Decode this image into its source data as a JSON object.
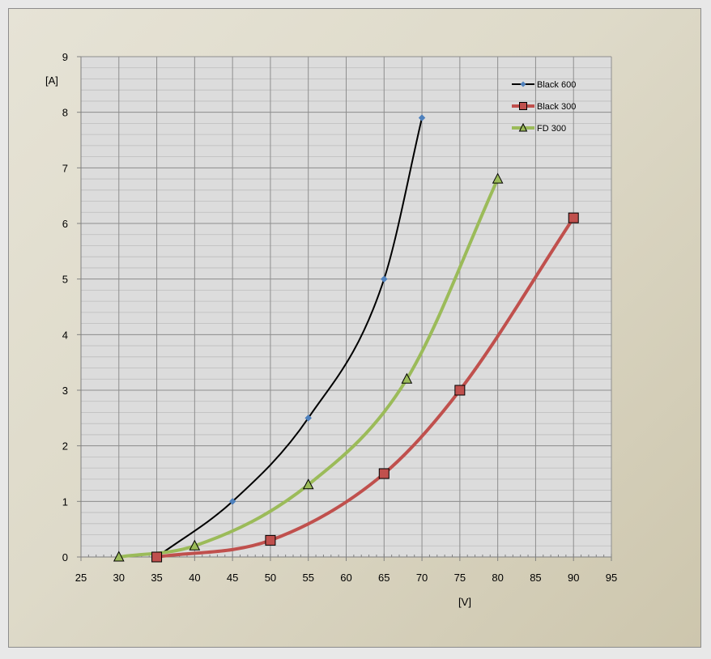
{
  "chart_data": {
    "type": "scatter",
    "title": "",
    "xlabel": "[V]",
    "ylabel": "[A]",
    "xlim": [
      25,
      95
    ],
    "ylim": [
      0,
      9
    ],
    "xticks": [
      25,
      30,
      35,
      40,
      45,
      50,
      55,
      60,
      65,
      70,
      75,
      80,
      85,
      90,
      95
    ],
    "yticks": [
      0,
      1,
      2,
      3,
      4,
      5,
      6,
      7,
      8,
      9
    ],
    "x_minor_step": 1,
    "y_minor_step": 0.2,
    "grid": true,
    "smoothed_lines": true,
    "legend_position": "top-right",
    "series": [
      {
        "name": "Black 600",
        "color": "#000000",
        "marker": "diamond",
        "marker_color": "#4f81bd",
        "points": [
          [
            35,
            0
          ],
          [
            45,
            1
          ],
          [
            55,
            2.5
          ],
          [
            65,
            5
          ],
          [
            70,
            7.9
          ]
        ]
      },
      {
        "name": "Black 300",
        "color": "#c0504d",
        "marker": "square",
        "marker_color": "#c0504d",
        "points": [
          [
            35,
            0
          ],
          [
            50,
            0.3
          ],
          [
            65,
            1.5
          ],
          [
            75,
            3
          ],
          [
            90,
            6.1
          ]
        ]
      },
      {
        "name": "FD 300",
        "color": "#9bbb59",
        "marker": "triangle",
        "marker_color": "#9bbb59",
        "points": [
          [
            30,
            0
          ],
          [
            40,
            0.2
          ],
          [
            55,
            1.3
          ],
          [
            68,
            3.2
          ],
          [
            80,
            6.8
          ]
        ]
      }
    ]
  }
}
